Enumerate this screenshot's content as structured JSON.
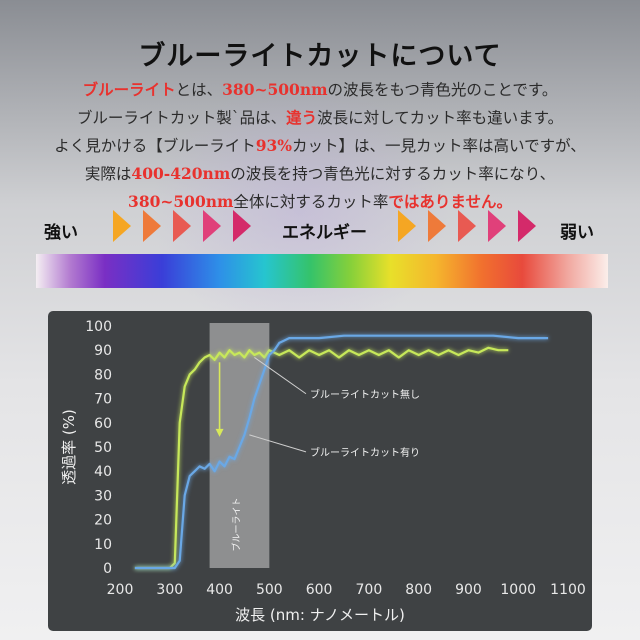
{
  "header": {
    "title": "ブルーライトカットについて"
  },
  "body": {
    "line1": [
      {
        "text": "ブルーライト",
        "red": true
      },
      {
        "text": "とは、",
        "red": false
      },
      {
        "text": "380~500nm",
        "red": true
      },
      {
        "text": "の波長をもつ青色光のことです。",
        "red": false
      }
    ],
    "line2": [
      {
        "text": "ブルーライトカット製`品は、",
        "red": false
      },
      {
        "text": "違う",
        "red": true
      },
      {
        "text": "波長に対してカット率も違います。",
        "red": false
      }
    ],
    "line3": [
      {
        "text": "よく見かける【ブルーライト",
        "red": false
      },
      {
        "text": "93%",
        "red": true
      },
      {
        "text": "カット】は、一見カット率は高いですが、",
        "red": false
      }
    ],
    "line4": [
      {
        "text": "実際は",
        "red": false
      },
      {
        "text": "400-420nm",
        "red": true
      },
      {
        "text": "の波長を持つ青色光に対するカット率になり、",
        "red": false
      }
    ],
    "line5": [
      {
        "text": "380~500nm",
        "red": true
      },
      {
        "text": "全体に対するカット率",
        "red": false
      },
      {
        "text": "ではありません。",
        "red": true
      }
    ]
  },
  "energy": {
    "strong_label": "強い",
    "center_label": "エネルギー",
    "weak_label": "弱い",
    "arrow_colors": [
      "#f5a623",
      "#ee7a3a",
      "#e85a52",
      "#e0407a",
      "#d42a6a"
    ]
  },
  "spectrum": {
    "colors": [
      "#b27ad0",
      "#3a3ed8",
      "#26c5cf",
      "#35c36a",
      "#e8e02a",
      "#f1702e",
      "#e84a3c"
    ]
  },
  "chart_data": {
    "type": "line",
    "title": "",
    "xlabel": "波長 (nm: ナノメートル)",
    "ylabel": "透過率 (%)",
    "xlim": [
      200,
      1100
    ],
    "ylim": [
      0,
      100
    ],
    "xticks": [
      200,
      300,
      400,
      500,
      600,
      700,
      800,
      900,
      1000,
      1100
    ],
    "yticks": [
      0,
      10,
      20,
      30,
      40,
      50,
      60,
      70,
      80,
      90,
      100
    ],
    "grid": false,
    "background": "#3f4244",
    "highlight_band": {
      "x_from": 380,
      "x_to": 500,
      "label": "ブルーライト"
    },
    "series": [
      {
        "name": "ブルーライトカット無し",
        "color": "#c7e85a",
        "x": [
          230,
          290,
          300,
          310,
          320,
          330,
          340,
          350,
          360,
          370,
          380,
          390,
          400,
          410,
          420,
          430,
          440,
          450,
          460,
          470,
          480,
          490,
          500,
          520,
          540,
          560,
          580,
          600,
          620,
          640,
          660,
          680,
          700,
          720,
          740,
          760,
          780,
          800,
          820,
          840,
          860,
          880,
          900,
          920,
          940,
          960,
          980
        ],
        "y": [
          0,
          0,
          0,
          2,
          60,
          75,
          80,
          82,
          85,
          87,
          88,
          86,
          89,
          87,
          90,
          88,
          89,
          87,
          90,
          88,
          89,
          87,
          90,
          88,
          90,
          87,
          90,
          88,
          90,
          87,
          90,
          88,
          90,
          88,
          90,
          87,
          90,
          88,
          90,
          88,
          90,
          88,
          90,
          89,
          91,
          90,
          90
        ]
      },
      {
        "name": "ブルーライトカット有り",
        "color": "#6aa8e6",
        "x": [
          230,
          300,
          310,
          320,
          330,
          340,
          350,
          360,
          370,
          380,
          390,
          400,
          410,
          420,
          430,
          440,
          450,
          460,
          470,
          480,
          490,
          500,
          510,
          520,
          530,
          540,
          560,
          600,
          650,
          700,
          750,
          800,
          850,
          900,
          950,
          1000,
          1040,
          1060
        ],
        "y": [
          0,
          0,
          0,
          3,
          30,
          38,
          40,
          42,
          41,
          43,
          40,
          44,
          42,
          46,
          45,
          50,
          55,
          62,
          70,
          76,
          82,
          88,
          90,
          93,
          94,
          95,
          95,
          95,
          96,
          96,
          96,
          96,
          96,
          96,
          96,
          95,
          95,
          95
        ]
      }
    ],
    "arrow": {
      "x": 400,
      "y_from": 85,
      "y_to": 55
    },
    "annotations": [
      {
        "text": "ブルーライトカット無し",
        "series": 0
      },
      {
        "text": "ブルーライトカット有り",
        "series": 1
      }
    ]
  }
}
